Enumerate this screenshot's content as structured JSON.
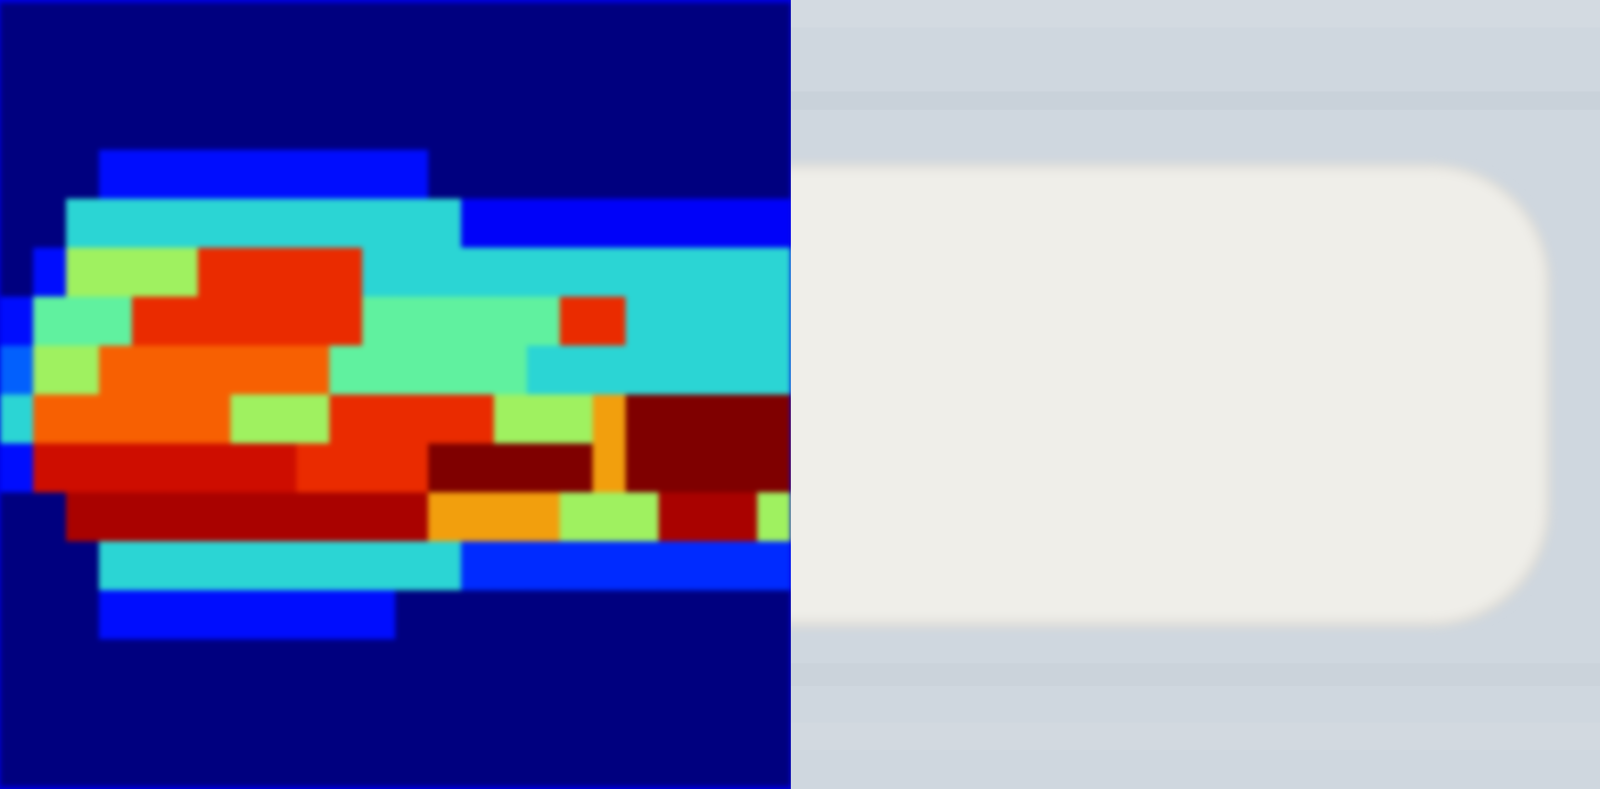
{
  "chart_data": {
    "type": "heatmap",
    "tick_labels": false,
    "values": [
      [
        0.05,
        0.05,
        0.05,
        0.05,
        0.05,
        0.05,
        0.05,
        0.05,
        0.05,
        0.05,
        0.05,
        0.05,
        0.05,
        0.05,
        0.05,
        0.05,
        0.05,
        0.05,
        0.05,
        0.05,
        0.05,
        0.05,
        0.05,
        0.05
      ],
      [
        0.05,
        0.05,
        0.05,
        0.05,
        0.05,
        0.05,
        0.05,
        0.05,
        0.05,
        0.05,
        0.05,
        0.05,
        0.05,
        0.05,
        0.05,
        0.05,
        0.05,
        0.05,
        0.05,
        0.05,
        0.05,
        0.05,
        0.05,
        0.05
      ],
      [
        0.05,
        0.05,
        0.05,
        0.05,
        0.05,
        0.05,
        0.05,
        0.05,
        0.05,
        0.05,
        0.05,
        0.05,
        0.05,
        0.05,
        0.05,
        0.05,
        0.05,
        0.05,
        0.05,
        0.05,
        0.05,
        0.05,
        0.05,
        0.05
      ],
      [
        0.05,
        0.05,
        0.05,
        0.3,
        0.3,
        0.3,
        0.3,
        0.3,
        0.3,
        0.3,
        0.3,
        0.3,
        0.3,
        0.05,
        0.05,
        0.05,
        0.05,
        0.05,
        0.05,
        0.05,
        0.05,
        0.05,
        0.05,
        0.05
      ],
      [
        0.05,
        0.05,
        0.5,
        0.5,
        0.5,
        0.5,
        0.5,
        0.5,
        0.5,
        0.5,
        0.5,
        0.5,
        0.5,
        0.5,
        0.25,
        0.25,
        0.25,
        0.25,
        0.25,
        0.25,
        0.25,
        0.25,
        0.25,
        0.25
      ],
      [
        0.05,
        0.3,
        0.6,
        0.6,
        0.6,
        0.6,
        0.8,
        0.8,
        0.8,
        0.8,
        0.8,
        0.5,
        0.5,
        0.5,
        0.5,
        0.5,
        0.5,
        0.5,
        0.5,
        0.5,
        0.5,
        0.5,
        0.5,
        0.5
      ],
      [
        0.3,
        0.55,
        0.55,
        0.55,
        0.8,
        0.8,
        0.8,
        0.8,
        0.8,
        0.8,
        0.8,
        0.55,
        0.55,
        0.55,
        0.55,
        0.55,
        0.55,
        0.8,
        0.8,
        0.5,
        0.5,
        0.5,
        0.5,
        0.5
      ],
      [
        0.4,
        0.6,
        0.6,
        0.75,
        0.75,
        0.75,
        0.75,
        0.75,
        0.75,
        0.75,
        0.55,
        0.55,
        0.55,
        0.55,
        0.55,
        0.55,
        0.5,
        0.5,
        0.5,
        0.5,
        0.5,
        0.5,
        0.5,
        0.5
      ],
      [
        0.5,
        0.75,
        0.75,
        0.75,
        0.75,
        0.75,
        0.75,
        0.6,
        0.6,
        0.6,
        0.8,
        0.8,
        0.8,
        0.8,
        0.8,
        0.6,
        0.6,
        0.6,
        0.7,
        0.95,
        0.95,
        0.95,
        0.95,
        0.95
      ],
      [
        0.3,
        0.85,
        0.85,
        0.85,
        0.85,
        0.85,
        0.85,
        0.85,
        0.85,
        0.8,
        0.8,
        0.8,
        0.8,
        0.95,
        0.95,
        0.95,
        0.95,
        0.95,
        0.7,
        0.95,
        0.95,
        0.95,
        0.95,
        0.95
      ],
      [
        0.05,
        0.05,
        0.9,
        0.9,
        0.9,
        0.9,
        0.9,
        0.9,
        0.9,
        0.9,
        0.9,
        0.9,
        0.9,
        0.7,
        0.7,
        0.7,
        0.7,
        0.6,
        0.6,
        0.6,
        0.9,
        0.9,
        0.9,
        0.6
      ],
      [
        0.05,
        0.05,
        0.05,
        0.5,
        0.5,
        0.5,
        0.5,
        0.5,
        0.5,
        0.5,
        0.5,
        0.5,
        0.5,
        0.5,
        0.35,
        0.35,
        0.35,
        0.35,
        0.35,
        0.35,
        0.35,
        0.35,
        0.35,
        0.35
      ],
      [
        0.05,
        0.05,
        0.05,
        0.3,
        0.3,
        0.3,
        0.3,
        0.3,
        0.3,
        0.3,
        0.3,
        0.3,
        0.05,
        0.05,
        0.05,
        0.05,
        0.05,
        0.05,
        0.05,
        0.05,
        0.05,
        0.05,
        0.05,
        0.05
      ],
      [
        0.05,
        0.05,
        0.05,
        0.05,
        0.05,
        0.05,
        0.05,
        0.05,
        0.05,
        0.05,
        0.05,
        0.05,
        0.05,
        0.05,
        0.05,
        0.05,
        0.05,
        0.05,
        0.05,
        0.05,
        0.05,
        0.05,
        0.05,
        0.05
      ],
      [
        0.05,
        0.05,
        0.05,
        0.05,
        0.05,
        0.05,
        0.05,
        0.05,
        0.05,
        0.05,
        0.05,
        0.05,
        0.05,
        0.05,
        0.05,
        0.05,
        0.05,
        0.05,
        0.05,
        0.05,
        0.05,
        0.05,
        0.05,
        0.05
      ],
      [
        0.05,
        0.05,
        0.05,
        0.05,
        0.05,
        0.05,
        0.05,
        0.05,
        0.05,
        0.05,
        0.05,
        0.05,
        0.05,
        0.05,
        0.05,
        0.05,
        0.05,
        0.05,
        0.05,
        0.05,
        0.05,
        0.05,
        0.05,
        0.05
      ]
    ]
  }
}
